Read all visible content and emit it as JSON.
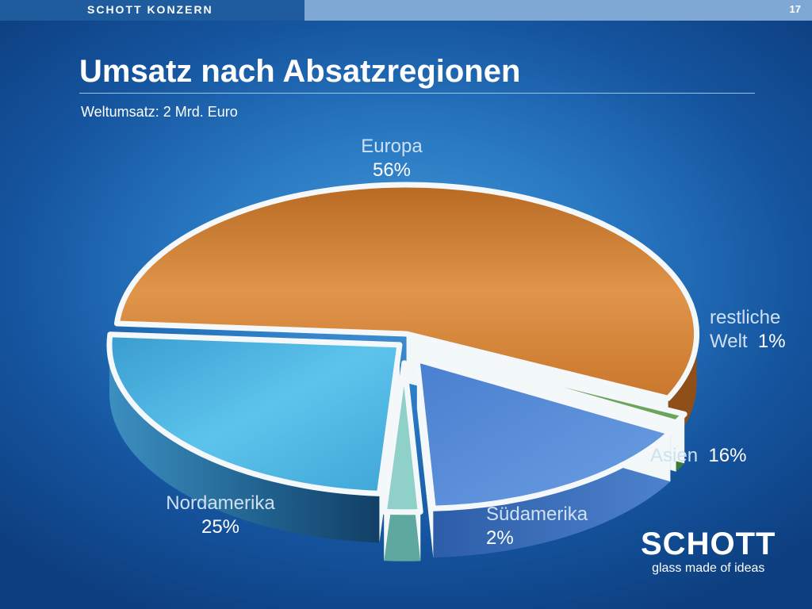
{
  "header": {
    "section": "SCHOTT KONZERN",
    "page_number": "17"
  },
  "title": "Umsatz nach Absatzregionen",
  "subtitle": "Weltumsatz: 2 Mrd. Euro",
  "chart_data": {
    "type": "pie",
    "title": "Umsatz nach Absatzregionen",
    "subtitle": "Weltumsatz: 2 Mrd. Euro",
    "categories": [
      "Europa",
      "restliche Welt",
      "Asien",
      "Südamerika",
      "Nordamerika"
    ],
    "values": [
      56,
      1,
      16,
      2,
      25
    ],
    "labels": {
      "europa": {
        "name": "Europa",
        "pct": "56%"
      },
      "rest": {
        "name1": "restliche",
        "name2": "Welt",
        "pct": "1%"
      },
      "asien": {
        "name": "Asien",
        "pct": "16%"
      },
      "suedamerika": {
        "name": "Südamerika",
        "pct": "2%"
      },
      "nordamerika": {
        "name": "Nordamerika",
        "pct": "25%"
      }
    },
    "colors": [
      "#d98a3a",
      "#6aa55a",
      "#5b8fd8",
      "#8fd0c8",
      "#52b8e0"
    ],
    "style": "3d-exploded"
  },
  "logo": {
    "word": "SCHOTT",
    "tagline": "glass made of ideas"
  }
}
